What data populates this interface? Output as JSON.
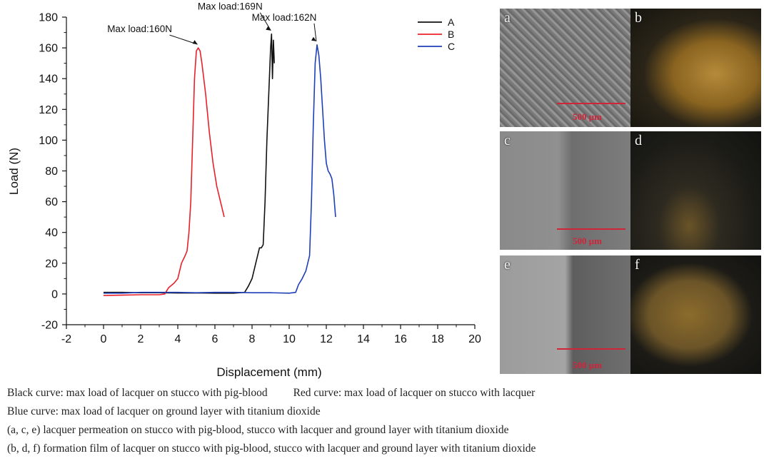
{
  "chart_data": {
    "type": "line",
    "xlabel": "Displacement (mm)",
    "ylabel": "Load (N)",
    "xlim": [
      -2,
      20
    ],
    "ylim": [
      -20,
      180
    ],
    "xticks": [
      -2,
      0,
      2,
      4,
      6,
      8,
      10,
      12,
      14,
      16,
      18,
      20
    ],
    "yticks": [
      -20,
      0,
      20,
      40,
      60,
      80,
      100,
      120,
      140,
      160,
      180
    ],
    "grid": false,
    "legend_position": "top-right",
    "series": [
      {
        "name": "A",
        "color": "#111111",
        "x": [
          0,
          1,
          2,
          3,
          4,
          5,
          6,
          7,
          7.6,
          7.8,
          8.0,
          8.2,
          8.4,
          8.5,
          8.6,
          8.7,
          8.8,
          8.9,
          9.0,
          9.05,
          9.1,
          9.15,
          9.2
        ],
        "y": [
          1,
          1,
          0.8,
          0.8,
          0.6,
          0.7,
          0.5,
          0.5,
          1,
          5,
          10,
          20,
          30,
          30,
          32,
          60,
          100,
          130,
          160,
          169,
          140,
          165,
          150
        ]
      },
      {
        "name": "B",
        "color": "#e8202a",
        "x": [
          0,
          1,
          2,
          3,
          3.3,
          3.5,
          3.8,
          4.0,
          4.2,
          4.4,
          4.5,
          4.6,
          4.7,
          4.8,
          4.9,
          5.0,
          5.1,
          5.2,
          5.3,
          5.5,
          5.7,
          5.9,
          6.1,
          6.3,
          6.5
        ],
        "y": [
          -1,
          -0.8,
          -0.5,
          -0.5,
          0,
          4,
          7,
          10,
          20,
          25,
          28,
          40,
          60,
          100,
          140,
          158,
          160,
          158,
          150,
          130,
          105,
          85,
          70,
          60,
          50
        ]
      },
      {
        "name": "C",
        "color": "#1f3fb8",
        "x": [
          0,
          1,
          2,
          3,
          4,
          5,
          6,
          7,
          8,
          9,
          10,
          10.35,
          10.5,
          10.7,
          10.9,
          11.0,
          11.1,
          11.2,
          11.3,
          11.4,
          11.5,
          11.6,
          11.7,
          11.8,
          11.9,
          12.0,
          12.1,
          12.2,
          12.3,
          12.4,
          12.5
        ],
        "y": [
          0.5,
          0.5,
          1,
          1,
          1,
          0.8,
          1,
          1,
          0.8,
          0.8,
          0.5,
          1,
          6,
          10,
          15,
          20,
          25,
          60,
          110,
          150,
          162,
          155,
          140,
          120,
          100,
          85,
          80,
          78,
          75,
          65,
          50
        ]
      }
    ],
    "annotations": [
      {
        "text": "Max load:169N",
        "x": 9.05,
        "y": 169
      },
      {
        "text": "Max load:160N",
        "x": 5.1,
        "y": 160
      },
      {
        "text": "Max load:162N",
        "x": 11.5,
        "y": 162
      }
    ]
  },
  "panels": [
    {
      "label": "a",
      "kind": "sem",
      "scale_text": "500 μm"
    },
    {
      "label": "b",
      "kind": "photo"
    },
    {
      "label": "c",
      "kind": "sem",
      "scale_text": "500 μm"
    },
    {
      "label": "d",
      "kind": "photo"
    },
    {
      "label": "e",
      "kind": "sem",
      "scale_text": "500 μm"
    },
    {
      "label": "f",
      "kind": "photo"
    }
  ],
  "captions": {
    "line1_a": "Black curve: max load of lacquer on stucco with pig-blood",
    "line1_b": "Red curve: max load of lacquer on stucco with lacquer",
    "line2": "Blue curve: max load of lacquer on ground layer with titanium dioxide",
    "line3": "(a, c, e) lacquer permeation on stucco with pig-blood, stucco with lacquer and ground layer with titanium dioxide",
    "line4": "(b, d, f) formation film of lacquer on stucco with pig-blood, stucco with lacquer and ground layer with titanium dioxide"
  }
}
